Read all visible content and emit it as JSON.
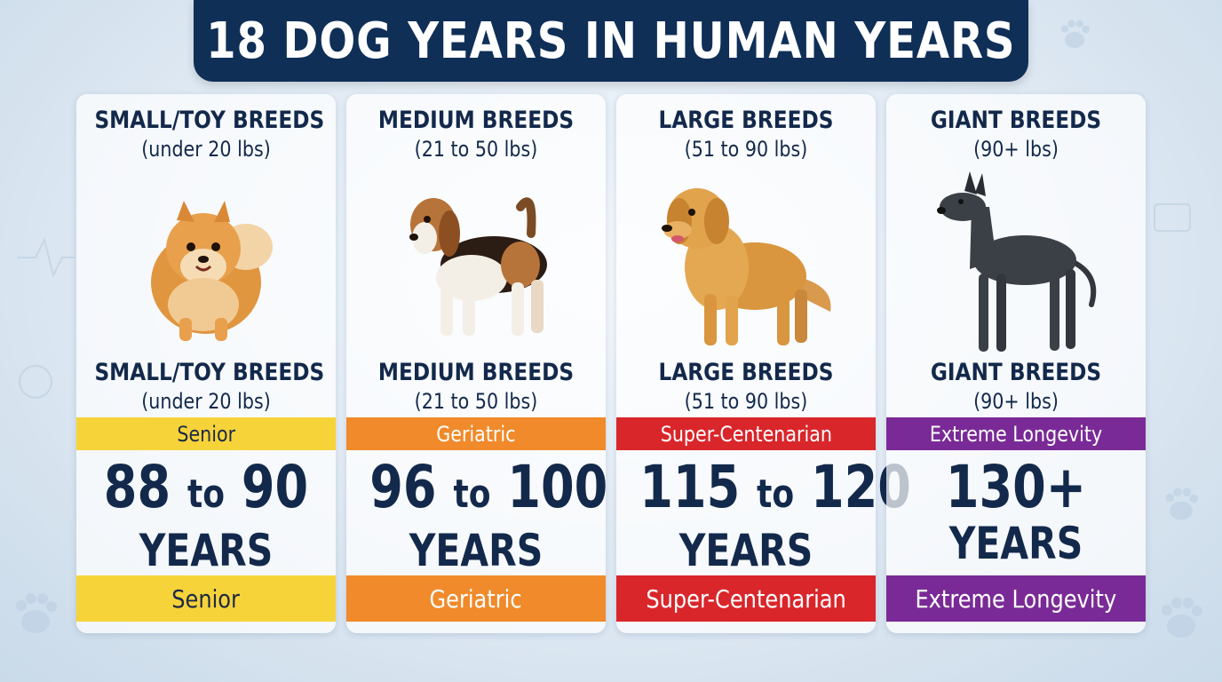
{
  "title": "18 DOG YEARS IN HUMAN YEARS",
  "cards": [
    {
      "name": "SMALL/TOY BREEDS",
      "weight": "(under 20 lbs)",
      "category": "Senior",
      "range_from": "88",
      "range_to": "90",
      "connector": "to",
      "unit": "YEARS",
      "band_color": "#f7d33a",
      "band_text_color": "#1c2a44",
      "dog_icon": "pomeranian-icon"
    },
    {
      "name": "MEDIUM BREEDS",
      "weight": "(21 to 50 lbs)",
      "category": "Geriatric",
      "range_from": "96",
      "range_to": "100",
      "connector": "to",
      "unit": "YEARS",
      "band_color": "#f08a2a",
      "band_text_color": "#ffffff",
      "dog_icon": "beagle-icon"
    },
    {
      "name": "LARGE BREEDS",
      "weight": "(51 to 90 lbs)",
      "category": "Super-Centenarian",
      "range_from": "115",
      "range_to": "120",
      "connector": "to",
      "unit": "YEARS",
      "band_color": "#d9262b",
      "band_text_color": "#ffffff",
      "dog_icon": "golden-retriever-icon"
    },
    {
      "name": "GIANT BREEDS",
      "weight": "(90+ lbs)",
      "category": "Extreme Longevity",
      "range_from": "130+",
      "range_to": "",
      "connector": "",
      "unit": "YEARS",
      "band_color": "#7a2a96",
      "band_text_color": "#ffffff",
      "dog_icon": "great-dane-icon"
    }
  ]
}
